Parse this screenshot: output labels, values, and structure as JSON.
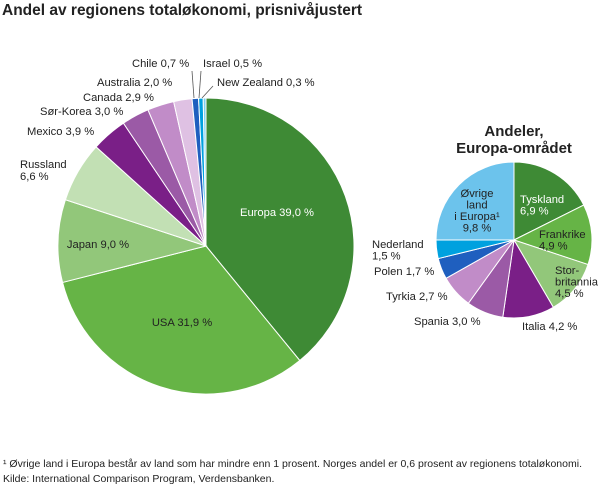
{
  "title": "Andel av regionens totaløkonomi, prisnivåjustert",
  "footnote": "¹ Øvrige land i Europa består av land som har mindre enn 1 prosent. Norges andel er 0,6 prosent av regionens totaløkonomi.",
  "source": "Kilde: International Comparison Program, Verdensbanken.",
  "chart_data": [
    {
      "type": "pie",
      "title": "",
      "labels": [
        "Europa",
        "USA",
        "Japan",
        "Russland",
        "Mexico",
        "Sør-Korea",
        "Canada",
        "Australia",
        "Chile",
        "Israel",
        "New Zealand"
      ],
      "values": [
        39.0,
        31.9,
        9.0,
        6.6,
        3.9,
        3.0,
        2.9,
        2.0,
        0.7,
        0.5,
        0.3
      ],
      "display_labels": [
        [
          "Europa 39,0 %"
        ],
        [
          "USA 31,9 %"
        ],
        [
          "Japan 9,0 %"
        ],
        [
          "Russland",
          "6,6 %"
        ],
        [
          "Mexico 3,9 %"
        ],
        [
          "Sør-Korea 3,0 %"
        ],
        [
          "Canada 2,9 %"
        ],
        [
          "Australia 2,0 %"
        ],
        [
          "Chile 0,7 %"
        ],
        [
          "Israel 0,5 %"
        ],
        [
          "New Zealand 0,3 %"
        ]
      ],
      "colors": [
        "#3e8a35",
        "#66b446",
        "#92c77a",
        "#c2e0b4",
        "#7a1f87",
        "#9b5aa6",
        "#c18cc8",
        "#dfc1e3",
        "#1f5fbf",
        "#00a1df",
        "#7fd0ee"
      ]
    },
    {
      "type": "pie",
      "title": [
        "Andeler,",
        "Europa-området"
      ],
      "labels": [
        "Tyskland",
        "Frankrike",
        "Storbritannia",
        "Italia",
        "Spania",
        "Tyrkia",
        "Polen",
        "Nederland",
        "Øvrige land i Europa¹"
      ],
      "values": [
        6.9,
        4.9,
        4.5,
        4.2,
        3.0,
        2.7,
        1.7,
        1.5,
        9.8
      ],
      "display_labels": [
        [
          "Tyskland",
          "6,9 %"
        ],
        [
          "Frankrike",
          "4,9 %"
        ],
        [
          "Stor-",
          "britannia",
          "4,5 %"
        ],
        [
          "Italia 4,2 %"
        ],
        [
          "Spania 3,0 %"
        ],
        [
          "Tyrkia 2,7 %"
        ],
        [
          "Polen 1,7 %"
        ],
        [
          "Nederland",
          "1,5 %"
        ],
        [
          "Øvrige",
          "land",
          "i Europa¹",
          "9,8 %"
        ]
      ],
      "colors": [
        "#3e8a35",
        "#66b446",
        "#92c77a",
        "#7a1f87",
        "#9b5aa6",
        "#c18cc8",
        "#1f5fbf",
        "#00a1df",
        "#6cc3ec"
      ]
    }
  ]
}
